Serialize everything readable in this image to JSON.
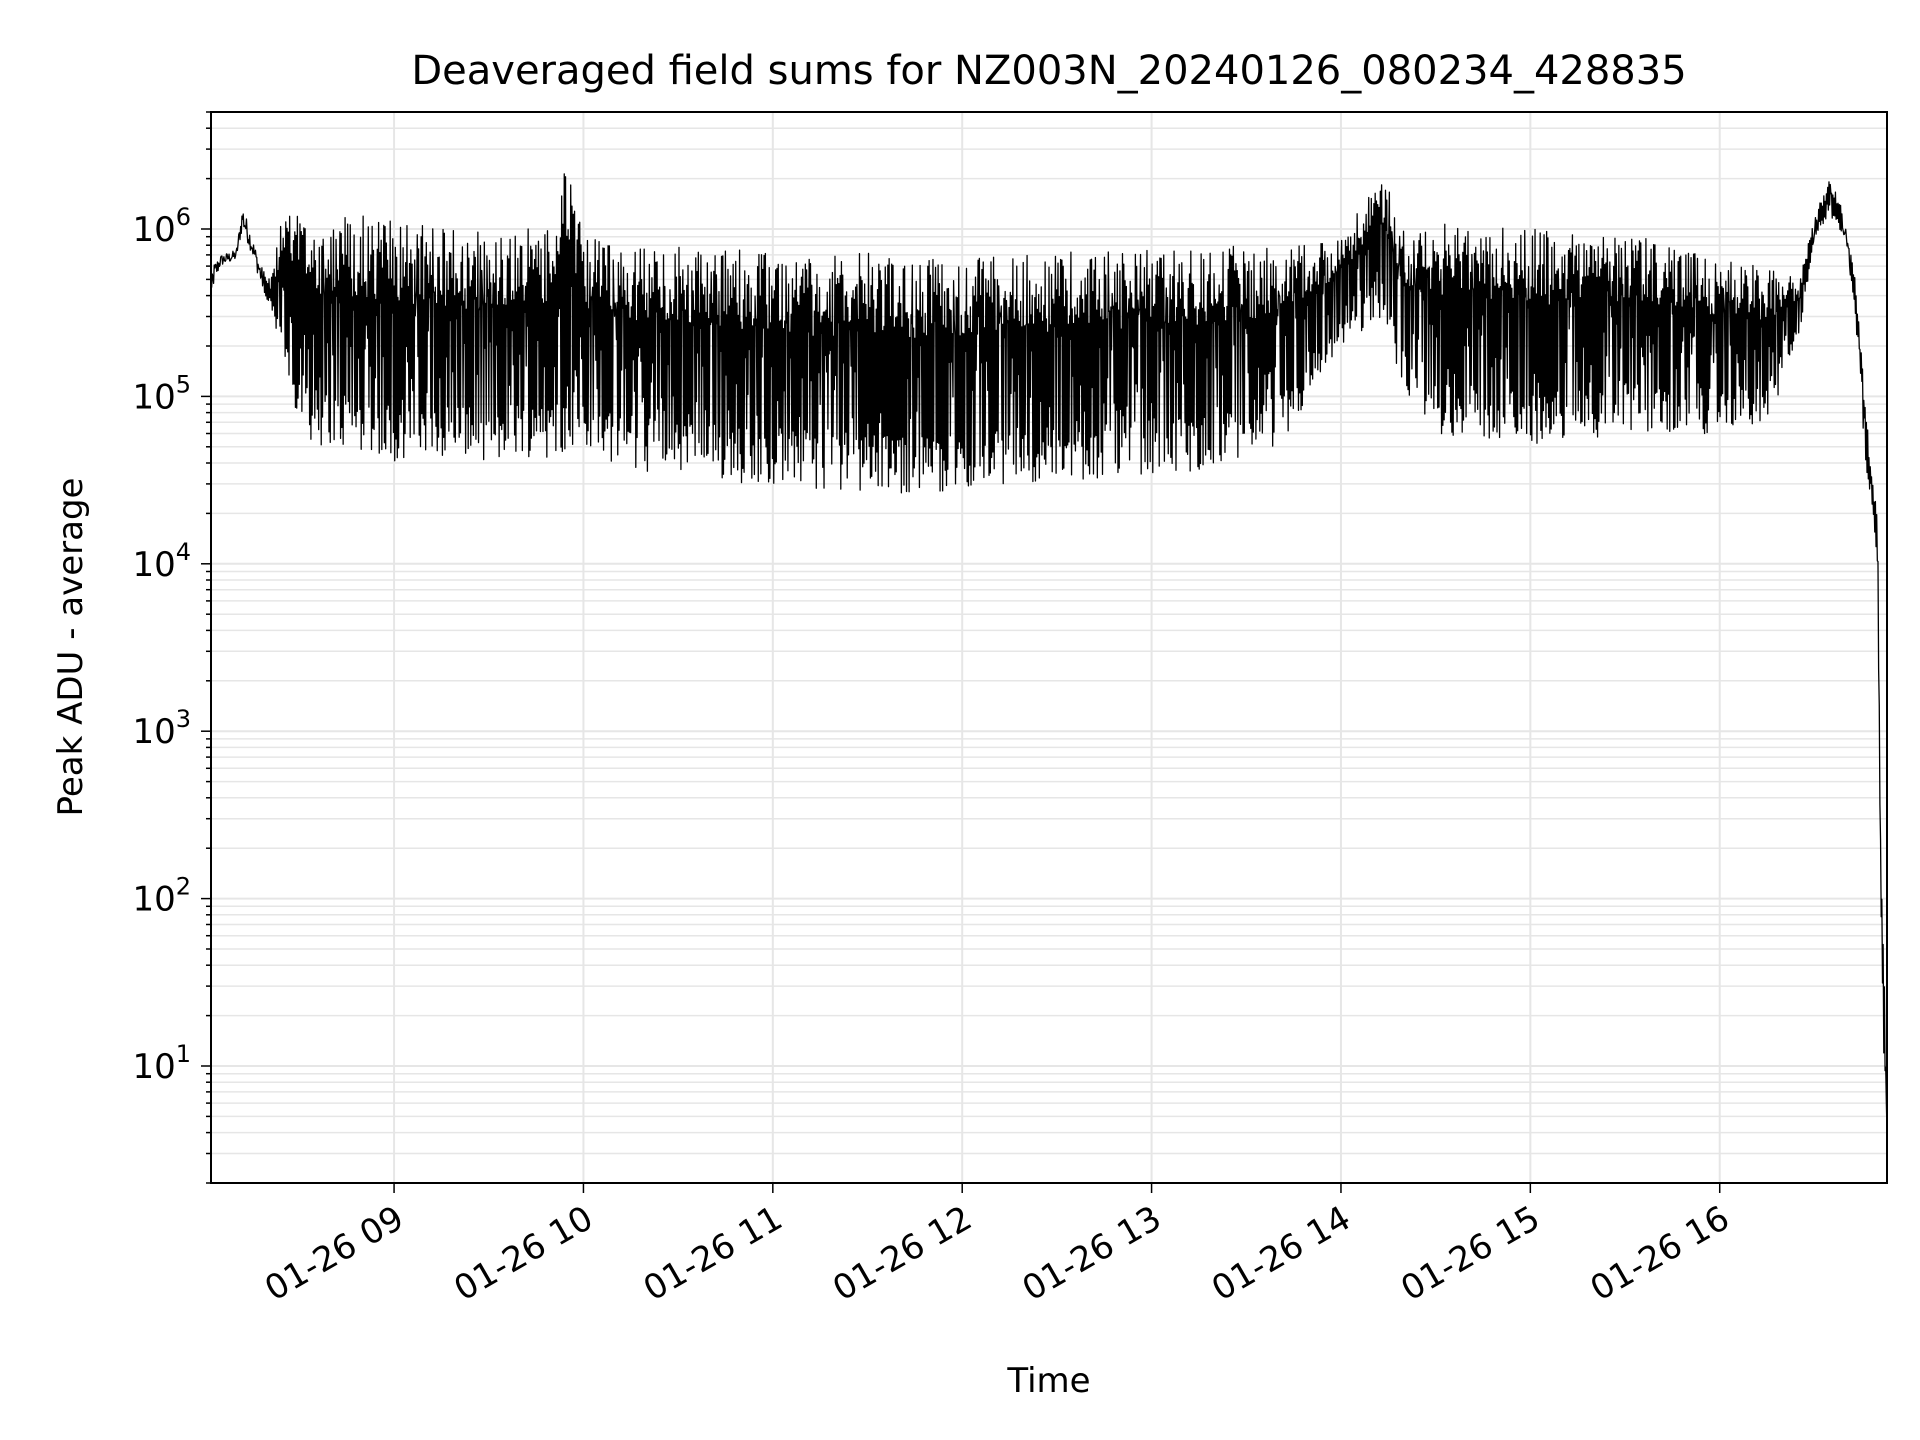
{
  "chart_data": {
    "type": "line",
    "title": "Deaveraged field sums for NZ003N_20240126_080234_428835",
    "xlabel": "Time",
    "ylabel": "Peak ADU - average",
    "yscale": "log",
    "xlim": [
      "2024-01-26T08:02:00",
      "2024-01-26T16:53:00"
    ],
    "ylim": [
      2,
      5000000
    ],
    "grid": true,
    "line_color": "#000000",
    "xticks": [
      {
        "t": "2024-01-26T09:00:00",
        "label": "01-26 09"
      },
      {
        "t": "2024-01-26T10:00:00",
        "label": "01-26 10"
      },
      {
        "t": "2024-01-26T11:00:00",
        "label": "01-26 11"
      },
      {
        "t": "2024-01-26T12:00:00",
        "label": "01-26 12"
      },
      {
        "t": "2024-01-26T13:00:00",
        "label": "01-26 13"
      },
      {
        "t": "2024-01-26T14:00:00",
        "label": "01-26 14"
      },
      {
        "t": "2024-01-26T15:00:00",
        "label": "01-26 15"
      },
      {
        "t": "2024-01-26T16:00:00",
        "label": "01-26 16"
      }
    ],
    "yticks": [
      {
        "v": 10,
        "base": "10",
        "exp": "1"
      },
      {
        "v": 100,
        "base": "10",
        "exp": "2"
      },
      {
        "v": 1000,
        "base": "10",
        "exp": "3"
      },
      {
        "v": 10000,
        "base": "10",
        "exp": "4"
      },
      {
        "v": 100000,
        "base": "10",
        "exp": "5"
      },
      {
        "v": 1000000,
        "base": "10",
        "exp": "6"
      }
    ],
    "series": [
      {
        "x": [
          "2024-01-26T08:02:00",
          "2024-01-26T08:05:00",
          "2024-01-26T08:10:00",
          "2024-01-26T08:12:00",
          "2024-01-26T08:15:00",
          "2024-01-26T08:18:00",
          "2024-01-26T08:21:00",
          "2024-01-26T08:25:00",
          "2024-01-26T08:30:00",
          "2024-01-26T08:33:00",
          "2024-01-26T08:37:00",
          "2024-01-26T08:42:00",
          "2024-01-26T08:47:00",
          "2024-01-26T08:52:00",
          "2024-01-26T08:57:00",
          "2024-01-26T09:02:00",
          "2024-01-26T09:10:00",
          "2024-01-26T09:20:00",
          "2024-01-26T09:30:00",
          "2024-01-26T09:40:00",
          "2024-01-26T09:50:00",
          "2024-01-26T09:55:00",
          "2024-01-26T10:00:00",
          "2024-01-26T10:10:00",
          "2024-01-26T10:20:00",
          "2024-01-26T10:30:00",
          "2024-01-26T10:40:00",
          "2024-01-26T10:50:00",
          "2024-01-26T11:00:00",
          "2024-01-26T11:15:00",
          "2024-01-26T11:30:00",
          "2024-01-26T11:45:00",
          "2024-01-26T12:00:00",
          "2024-01-26T12:15:00",
          "2024-01-26T12:30:00",
          "2024-01-26T12:45:00",
          "2024-01-26T13:00:00",
          "2024-01-26T13:15:00",
          "2024-01-26T13:30:00",
          "2024-01-26T13:45:00",
          "2024-01-26T14:00:00",
          "2024-01-26T14:13:00",
          "2024-01-26T14:20:00",
          "2024-01-26T14:30:00",
          "2024-01-26T14:45:00",
          "2024-01-26T15:00:00",
          "2024-01-26T15:15:00",
          "2024-01-26T15:30:00",
          "2024-01-26T15:45:00",
          "2024-01-26T16:00:00",
          "2024-01-26T16:15:00",
          "2024-01-26T16:25:00",
          "2024-01-26T16:30:00",
          "2024-01-26T16:35:00",
          "2024-01-26T16:38:00",
          "2024-01-26T16:40:00",
          "2024-01-26T16:43:00",
          "2024-01-26T16:46:00",
          "2024-01-26T16:48:00",
          "2024-01-26T16:50:00",
          "2024-01-26T16:51:00",
          "2024-01-26T16:52:00",
          "2024-01-26T16:53:00"
        ],
        "upper": [
          600000,
          700000,
          750000,
          1400000,
          900000,
          600000,
          500000,
          1300000,
          1350000,
          1300000,
          1200000,
          1250000,
          1200000,
          1200000,
          1150000,
          1100000,
          1050000,
          1000000,
          950000,
          1000000,
          1050000,
          2600000,
          900000,
          850000,
          800000,
          780000,
          760000,
          750000,
          720000,
          700000,
          720000,
          700000,
          680000,
          700000,
          720000,
          750000,
          750000,
          780000,
          800000,
          850000,
          900000,
          2100000,
          1050000,
          1100000,
          1050000,
          1000000,
          950000,
          900000,
          850000,
          700000,
          600000,
          500000,
          1200000,
          2000000,
          1500000,
          1000000,
          500000,
          100000,
          35000,
          20000,
          200,
          50,
          4
        ],
        "lower": [
          400000,
          600000,
          650000,
          1000000,
          700000,
          450000,
          300000,
          150000,
          70000,
          55000,
          50000,
          50000,
          48000,
          45000,
          42000,
          40000,
          40000,
          45000,
          40000,
          45000,
          40000,
          50000,
          45000,
          40000,
          35000,
          35000,
          32000,
          30000,
          30000,
          28000,
          27000,
          26000,
          28000,
          30000,
          30000,
          32000,
          35000,
          35000,
          40000,
          60000,
          200000,
          300000,
          100000,
          60000,
          55000,
          50000,
          55000,
          60000,
          60000,
          60000,
          70000,
          200000,
          900000,
          1200000,
          1000000,
          800000,
          300000,
          40000,
          24000,
          10000,
          100,
          10,
          4
        ]
      }
    ]
  }
}
